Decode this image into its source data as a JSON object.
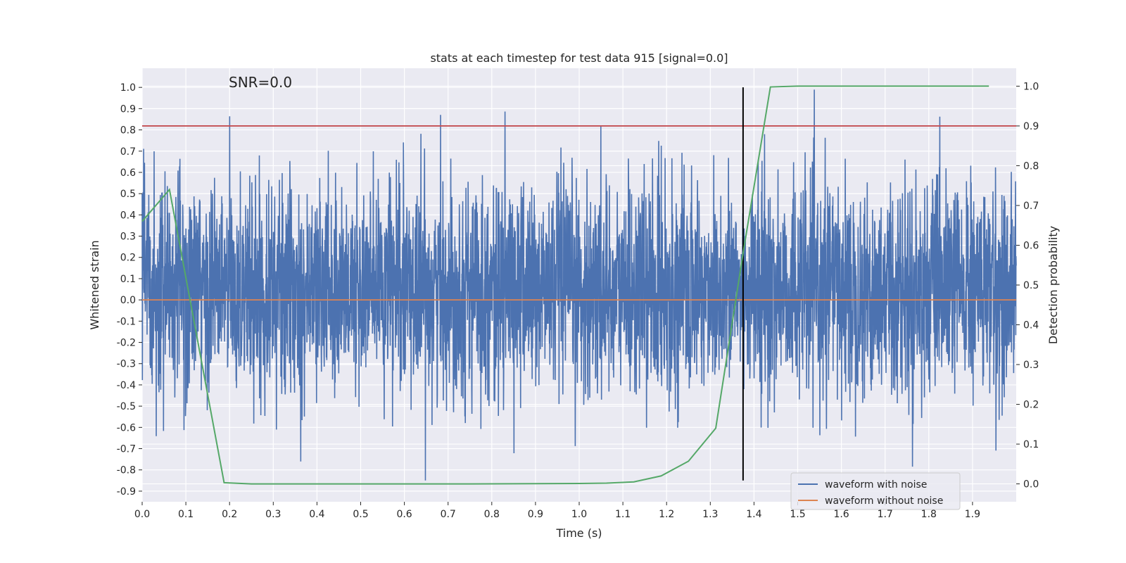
{
  "chart_data": {
    "type": "line",
    "title": "stats at each timestep for test data 915 [signal=0.0]",
    "xlabel": "Time (s)",
    "ylabel": "Whitened strain",
    "y2label": "Detection probability",
    "annotation": "SNR=0.0",
    "xlim": [
      0.0,
      2.0
    ],
    "ylim": [
      -0.95,
      1.09
    ],
    "y2lim": [
      -0.045,
      1.045
    ],
    "x_ticks": [
      "0.0",
      "0.1",
      "0.2",
      "0.3",
      "0.4",
      "0.5",
      "0.6",
      "0.7",
      "0.8",
      "0.9",
      "1.0",
      "1.1",
      "1.2",
      "1.3",
      "1.4",
      "1.5",
      "1.6",
      "1.7",
      "1.8",
      "1.9"
    ],
    "y_ticks": [
      "1.0",
      "0.9",
      "0.8",
      "0.7",
      "0.6",
      "0.5",
      "0.4",
      "0.3",
      "0.2",
      "0.1",
      "0.0",
      "-0.1",
      "-0.2",
      "-0.3",
      "-0.4",
      "-0.5",
      "-0.6",
      "-0.7",
      "-0.8",
      "-0.9"
    ],
    "y2_ticks": [
      "1.0",
      "0.9",
      "0.8",
      "0.7",
      "0.6",
      "0.5",
      "0.4",
      "0.3",
      "0.2",
      "0.1",
      "0.0"
    ],
    "grid": true,
    "legend_position": "lower-right",
    "series": [
      {
        "name": "waveform with noise",
        "color": "#4c72b0",
        "axis": "left",
        "kind": "noise",
        "x_range": [
          0.0,
          2.0
        ],
        "mean": 0.05,
        "min": -0.85,
        "max": 1.0
      },
      {
        "name": "waveform without noise",
        "color": "#dd8452",
        "axis": "left",
        "kind": "line",
        "x": [
          0.0,
          2.0
        ],
        "y": [
          0.0,
          0.0
        ]
      },
      {
        "color": "#55a868",
        "axis": "right",
        "kind": "line",
        "x": [
          0.0,
          0.0625,
          0.1875,
          0.25,
          0.5,
          0.75,
          1.0,
          1.0625,
          1.125,
          1.1875,
          1.25,
          1.3125,
          1.375,
          1.4375,
          1.5,
          1.625,
          1.75,
          1.875,
          1.9375
        ],
        "y": [
          0.66,
          0.74,
          0.003,
          0.0,
          0.0,
          0.0,
          0.001,
          0.002,
          0.005,
          0.02,
          0.057,
          0.14,
          0.58,
          0.998,
          1.0,
          1.0,
          1.0,
          1.0,
          1.0
        ]
      }
    ],
    "threshold": {
      "axis": "right",
      "value": 0.9,
      "color": "#c44e52"
    },
    "marker_time": {
      "x": 1.375,
      "y_from": -0.85,
      "y_to": 1.0,
      "color": "#000000"
    }
  }
}
